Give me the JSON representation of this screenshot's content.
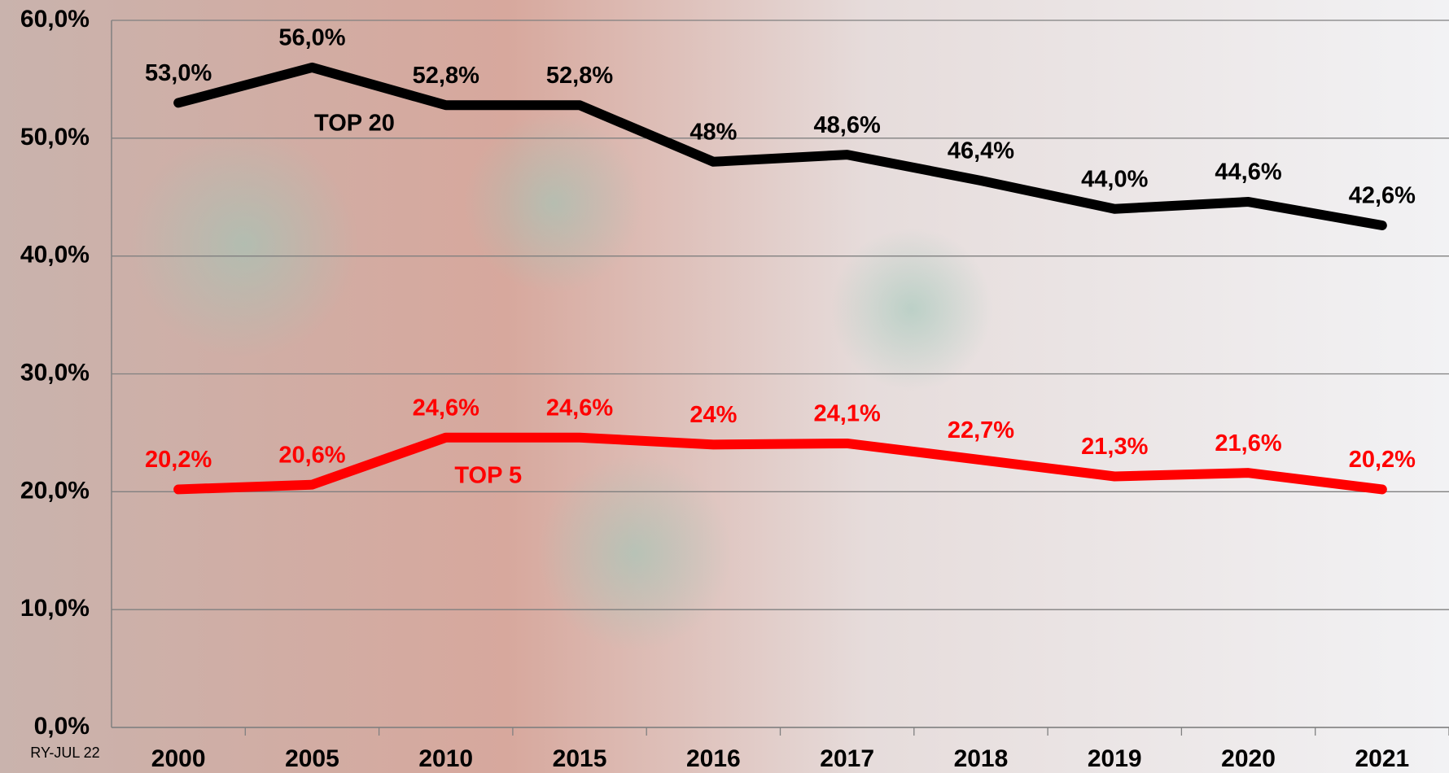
{
  "chart_data": {
    "type": "line",
    "categories": [
      "2000",
      "2005",
      "2010",
      "2015",
      "2016",
      "2017",
      "2018",
      "2019",
      "2020",
      "2021"
    ],
    "series": [
      {
        "name": "TOP 20",
        "color": "#000000",
        "values": [
          53.0,
          56.0,
          52.8,
          52.8,
          48,
          48.6,
          46.4,
          44.0,
          44.6,
          42.6
        ],
        "value_labels": [
          "53,0%",
          "56,0%",
          "52,8%",
          "52,8%",
          "48%",
          "48,6%",
          "46,4%",
          "44,0%",
          "44,6%",
          "42,6%"
        ]
      },
      {
        "name": "TOP 5",
        "color": "#ff0000",
        "values": [
          20.2,
          20.6,
          24.6,
          24.6,
          24,
          24.1,
          22.7,
          21.3,
          21.6,
          20.2
        ],
        "value_labels": [
          "20,2%",
          "20,6%",
          "24,6%",
          "24,6%",
          "24%",
          "24,1%",
          "22,7%",
          "21,3%",
          "21,6%",
          "20,2%"
        ]
      }
    ],
    "ylim": [
      0,
      60
    ],
    "yticks": [
      {
        "value": 0,
        "label": "0,0%"
      },
      {
        "value": 10,
        "label": "10,0%"
      },
      {
        "value": 20,
        "label": "20,0%"
      },
      {
        "value": 30,
        "label": "30,0%"
      },
      {
        "value": 40,
        "label": "40,0%"
      },
      {
        "value": 50,
        "label": "50,0%"
      },
      {
        "value": 60,
        "label": "60,0%"
      }
    ],
    "grid": true,
    "source": "RY-JUL 22"
  }
}
